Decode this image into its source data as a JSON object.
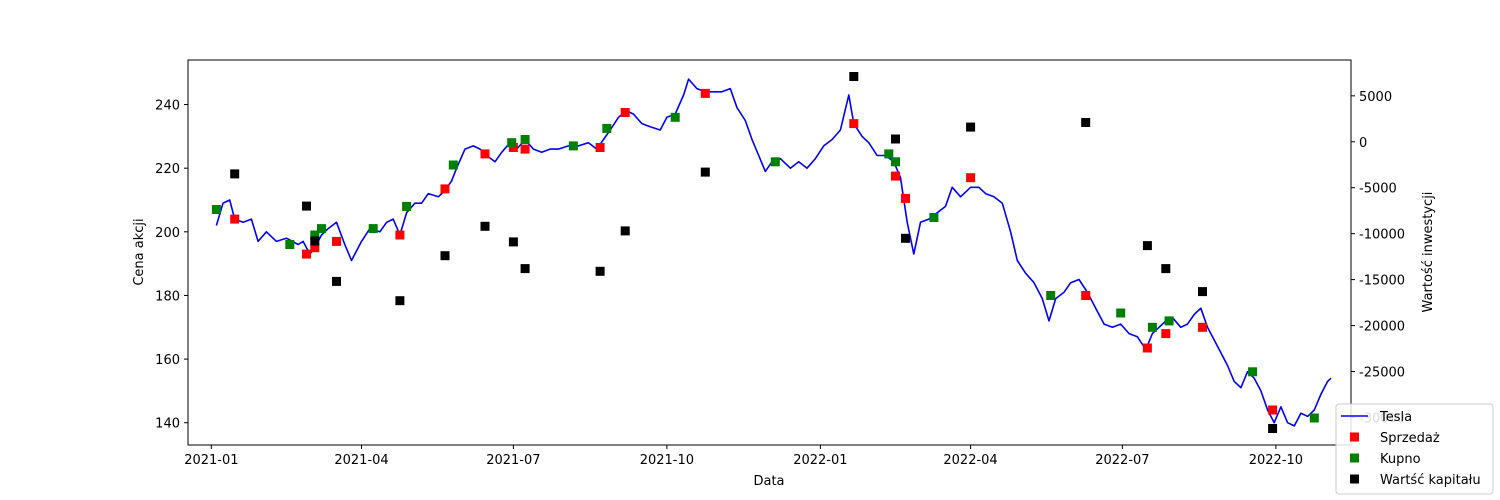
{
  "chart_data": {
    "type": "line",
    "xlabel": "Data",
    "ylabel_left": "Cena akcji",
    "ylabel_right": "Wartość inwestycji",
    "x_ticks": [
      "2021-01",
      "2021-04",
      "2021-07",
      "2021-10",
      "2022-01",
      "2022-04",
      "2022-07",
      "2022-10"
    ],
    "x_tick_dates": [
      "2021-01-01",
      "2021-04-01",
      "2021-07-01",
      "2021-10-01",
      "2022-01-01",
      "2022-04-01",
      "2022-07-01",
      "2022-10-01"
    ],
    "xlim": [
      "2020-12-18",
      "2022-11-15"
    ],
    "ylim_left": [
      133,
      254
    ],
    "ylim_right": [
      -33000,
      8900
    ],
    "y_ticks_left": [
      140,
      160,
      180,
      200,
      220,
      240
    ],
    "y_ticks_right": [
      -30000,
      -25000,
      -20000,
      -15000,
      -10000,
      -5000,
      0,
      5000
    ],
    "legend_position": "lower right",
    "colors": {
      "Tesla": "#0000ff",
      "Sprzedaż": "#ff0000",
      "Kupno": "#008000",
      "Wartść kapitału": "#000000"
    },
    "series": [
      {
        "name": "Tesla",
        "kind": "line",
        "axis": "left",
        "points": [
          [
            "2021-01-04",
            202
          ],
          [
            "2021-01-08",
            209
          ],
          [
            "2021-01-12",
            210
          ],
          [
            "2021-01-15",
            204
          ],
          [
            "2021-01-20",
            203
          ],
          [
            "2021-01-25",
            204
          ],
          [
            "2021-01-29",
            197
          ],
          [
            "2021-02-03",
            200
          ],
          [
            "2021-02-09",
            197
          ],
          [
            "2021-02-15",
            198
          ],
          [
            "2021-02-22",
            196
          ],
          [
            "2021-02-25",
            197
          ],
          [
            "2021-03-01",
            193
          ],
          [
            "2021-03-04",
            195
          ],
          [
            "2021-03-08",
            199
          ],
          [
            "2021-03-12",
            201
          ],
          [
            "2021-03-17",
            203
          ],
          [
            "2021-03-22",
            196
          ],
          [
            "2021-03-26",
            191
          ],
          [
            "2021-04-01",
            197
          ],
          [
            "2021-04-06",
            201
          ],
          [
            "2021-04-12",
            200
          ],
          [
            "2021-04-16",
            203
          ],
          [
            "2021-04-20",
            204
          ],
          [
            "2021-04-24",
            199
          ],
          [
            "2021-04-28",
            206
          ],
          [
            "2021-05-03",
            209
          ],
          [
            "2021-05-07",
            209
          ],
          [
            "2021-05-11",
            212
          ],
          [
            "2021-05-17",
            211
          ],
          [
            "2021-05-21",
            213
          ],
          [
            "2021-05-25",
            216
          ],
          [
            "2021-05-28",
            220
          ],
          [
            "2021-06-02",
            226
          ],
          [
            "2021-06-07",
            227
          ],
          [
            "2021-06-11",
            226
          ],
          [
            "2021-06-15",
            224
          ],
          [
            "2021-06-20",
            222
          ],
          [
            "2021-06-24",
            225
          ],
          [
            "2021-06-29",
            228
          ],
          [
            "2021-07-03",
            226
          ],
          [
            "2021-07-08",
            229
          ],
          [
            "2021-07-13",
            226
          ],
          [
            "2021-07-18",
            225
          ],
          [
            "2021-07-23",
            226
          ],
          [
            "2021-07-28",
            226
          ],
          [
            "2021-08-03",
            227
          ],
          [
            "2021-08-09",
            227
          ],
          [
            "2021-08-15",
            228
          ],
          [
            "2021-08-20",
            226
          ],
          [
            "2021-08-24",
            229
          ],
          [
            "2021-08-28",
            232
          ],
          [
            "2021-09-02",
            236
          ],
          [
            "2021-09-07",
            238
          ],
          [
            "2021-09-11",
            237
          ],
          [
            "2021-09-16",
            234
          ],
          [
            "2021-09-21",
            233
          ],
          [
            "2021-09-27",
            232
          ],
          [
            "2021-10-01",
            236
          ],
          [
            "2021-10-06",
            237
          ],
          [
            "2021-10-11",
            243
          ],
          [
            "2021-10-14",
            248
          ],
          [
            "2021-10-19",
            245
          ],
          [
            "2021-10-24",
            244
          ],
          [
            "2021-10-28",
            244
          ],
          [
            "2021-11-03",
            244
          ],
          [
            "2021-11-08",
            245
          ],
          [
            "2021-11-12",
            239
          ],
          [
            "2021-11-17",
            235
          ],
          [
            "2021-11-21",
            229
          ],
          [
            "2021-11-25",
            224
          ],
          [
            "2021-11-29",
            219
          ],
          [
            "2021-12-03",
            222
          ],
          [
            "2021-12-08",
            223
          ],
          [
            "2021-12-14",
            220
          ],
          [
            "2021-12-19",
            222
          ],
          [
            "2021-12-24",
            220
          ],
          [
            "2021-12-29",
            223
          ],
          [
            "2022-01-03",
            227
          ],
          [
            "2022-01-08",
            229
          ],
          [
            "2022-01-13",
            232
          ],
          [
            "2022-01-18",
            243
          ],
          [
            "2022-01-21",
            234
          ],
          [
            "2022-01-26",
            230
          ],
          [
            "2022-01-30",
            228
          ],
          [
            "2022-02-04",
            224
          ],
          [
            "2022-02-09",
            224
          ],
          [
            "2022-02-14",
            222
          ],
          [
            "2022-02-18",
            217
          ],
          [
            "2022-02-22",
            203
          ],
          [
            "2022-02-26",
            193
          ],
          [
            "2022-03-02",
            203
          ],
          [
            "2022-03-07",
            204
          ],
          [
            "2022-03-12",
            206
          ],
          [
            "2022-03-17",
            208
          ],
          [
            "2022-03-21",
            214
          ],
          [
            "2022-03-26",
            211
          ],
          [
            "2022-04-01",
            214
          ],
          [
            "2022-04-06",
            214
          ],
          [
            "2022-04-10",
            212
          ],
          [
            "2022-04-15",
            211
          ],
          [
            "2022-04-20",
            209
          ],
          [
            "2022-04-25",
            200
          ],
          [
            "2022-04-29",
            191
          ],
          [
            "2022-05-04",
            187
          ],
          [
            "2022-05-09",
            184
          ],
          [
            "2022-05-14",
            179
          ],
          [
            "2022-05-18",
            172
          ],
          [
            "2022-05-22",
            179
          ],
          [
            "2022-05-27",
            181
          ],
          [
            "2022-05-31",
            184
          ],
          [
            "2022-06-05",
            185
          ],
          [
            "2022-06-10",
            181
          ],
          [
            "2022-06-15",
            176
          ],
          [
            "2022-06-20",
            171
          ],
          [
            "2022-06-25",
            170
          ],
          [
            "2022-06-30",
            171
          ],
          [
            "2022-07-05",
            168
          ],
          [
            "2022-07-10",
            167
          ],
          [
            "2022-07-15",
            163
          ],
          [
            "2022-07-19",
            168
          ],
          [
            "2022-07-23",
            170
          ],
          [
            "2022-07-27",
            172
          ],
          [
            "2022-07-31",
            173
          ],
          [
            "2022-08-05",
            170
          ],
          [
            "2022-08-09",
            171
          ],
          [
            "2022-08-13",
            174
          ],
          [
            "2022-08-17",
            176
          ],
          [
            "2022-08-21",
            170
          ],
          [
            "2022-08-25",
            166
          ],
          [
            "2022-08-29",
            162
          ],
          [
            "2022-09-02",
            158
          ],
          [
            "2022-09-06",
            153
          ],
          [
            "2022-09-10",
            151
          ],
          [
            "2022-09-14",
            156
          ],
          [
            "2022-09-18",
            154
          ],
          [
            "2022-09-22",
            150
          ],
          [
            "2022-09-26",
            144
          ],
          [
            "2022-09-30",
            140
          ],
          [
            "2022-10-04",
            145
          ],
          [
            "2022-10-08",
            140
          ],
          [
            "2022-10-12",
            139
          ],
          [
            "2022-10-16",
            143
          ],
          [
            "2022-10-20",
            142
          ],
          [
            "2022-10-24",
            144
          ],
          [
            "2022-10-28",
            149
          ],
          [
            "2022-11-01",
            153
          ],
          [
            "2022-11-03",
            154
          ]
        ]
      },
      {
        "name": "Sprzedaż",
        "kind": "scatter",
        "axis": "left",
        "points": [
          [
            "2021-01-15",
            204
          ],
          [
            "2021-02-27",
            193
          ],
          [
            "2021-03-04",
            195
          ],
          [
            "2021-03-17",
            197
          ],
          [
            "2021-04-24",
            199
          ],
          [
            "2021-05-21",
            213.5
          ],
          [
            "2021-06-14",
            224.5
          ],
          [
            "2021-07-01",
            226.5
          ],
          [
            "2021-07-08",
            226
          ],
          [
            "2021-08-22",
            226.5
          ],
          [
            "2021-09-06",
            237.5
          ],
          [
            "2021-10-24",
            243.5
          ],
          [
            "2022-01-21",
            234
          ],
          [
            "2022-02-15",
            217.5
          ],
          [
            "2022-02-21",
            210.5
          ],
          [
            "2022-04-01",
            217
          ],
          [
            "2022-06-09",
            180
          ],
          [
            "2022-07-16",
            163.5
          ],
          [
            "2022-07-27",
            168
          ],
          [
            "2022-08-18",
            170
          ],
          [
            "2022-09-29",
            144
          ]
        ]
      },
      {
        "name": "Kupno",
        "kind": "scatter",
        "axis": "left",
        "points": [
          [
            "2021-01-04",
            207
          ],
          [
            "2021-02-17",
            196
          ],
          [
            "2021-03-04",
            199
          ],
          [
            "2021-03-08",
            201
          ],
          [
            "2021-04-08",
            201
          ],
          [
            "2021-04-28",
            208
          ],
          [
            "2021-05-26",
            221
          ],
          [
            "2021-06-30",
            228
          ],
          [
            "2021-07-08",
            229
          ],
          [
            "2021-08-06",
            227
          ],
          [
            "2021-08-26",
            232.5
          ],
          [
            "2021-10-06",
            236
          ],
          [
            "2021-12-05",
            222
          ],
          [
            "2022-02-11",
            224.5
          ],
          [
            "2022-02-15",
            222
          ],
          [
            "2022-03-10",
            204.5
          ],
          [
            "2022-05-19",
            180
          ],
          [
            "2022-06-30",
            174.5
          ],
          [
            "2022-07-19",
            170
          ],
          [
            "2022-07-29",
            172
          ],
          [
            "2022-09-17",
            156
          ],
          [
            "2022-10-24",
            141.5
          ]
        ]
      },
      {
        "name": "Wartść kapitału",
        "kind": "scatter",
        "axis": "right",
        "points": [
          [
            "2021-01-15",
            -3500
          ],
          [
            "2021-02-27",
            -7000
          ],
          [
            "2021-03-04",
            -10800
          ],
          [
            "2021-03-17",
            -15200
          ],
          [
            "2021-04-24",
            -17300
          ],
          [
            "2021-05-21",
            -12400
          ],
          [
            "2021-06-14",
            -9200
          ],
          [
            "2021-07-01",
            -10900
          ],
          [
            "2021-07-08",
            -13800
          ],
          [
            "2021-08-22",
            -14100
          ],
          [
            "2021-09-06",
            -9700
          ],
          [
            "2021-10-24",
            -3300
          ],
          [
            "2022-01-21",
            7100
          ],
          [
            "2022-02-15",
            300
          ],
          [
            "2022-02-21",
            -10500
          ],
          [
            "2022-04-01",
            1600
          ],
          [
            "2022-06-09",
            2100
          ],
          [
            "2022-07-16",
            -11300
          ],
          [
            "2022-07-27",
            -13800
          ],
          [
            "2022-08-18",
            -16300
          ],
          [
            "2022-09-29",
            -31200
          ]
        ]
      }
    ]
  }
}
